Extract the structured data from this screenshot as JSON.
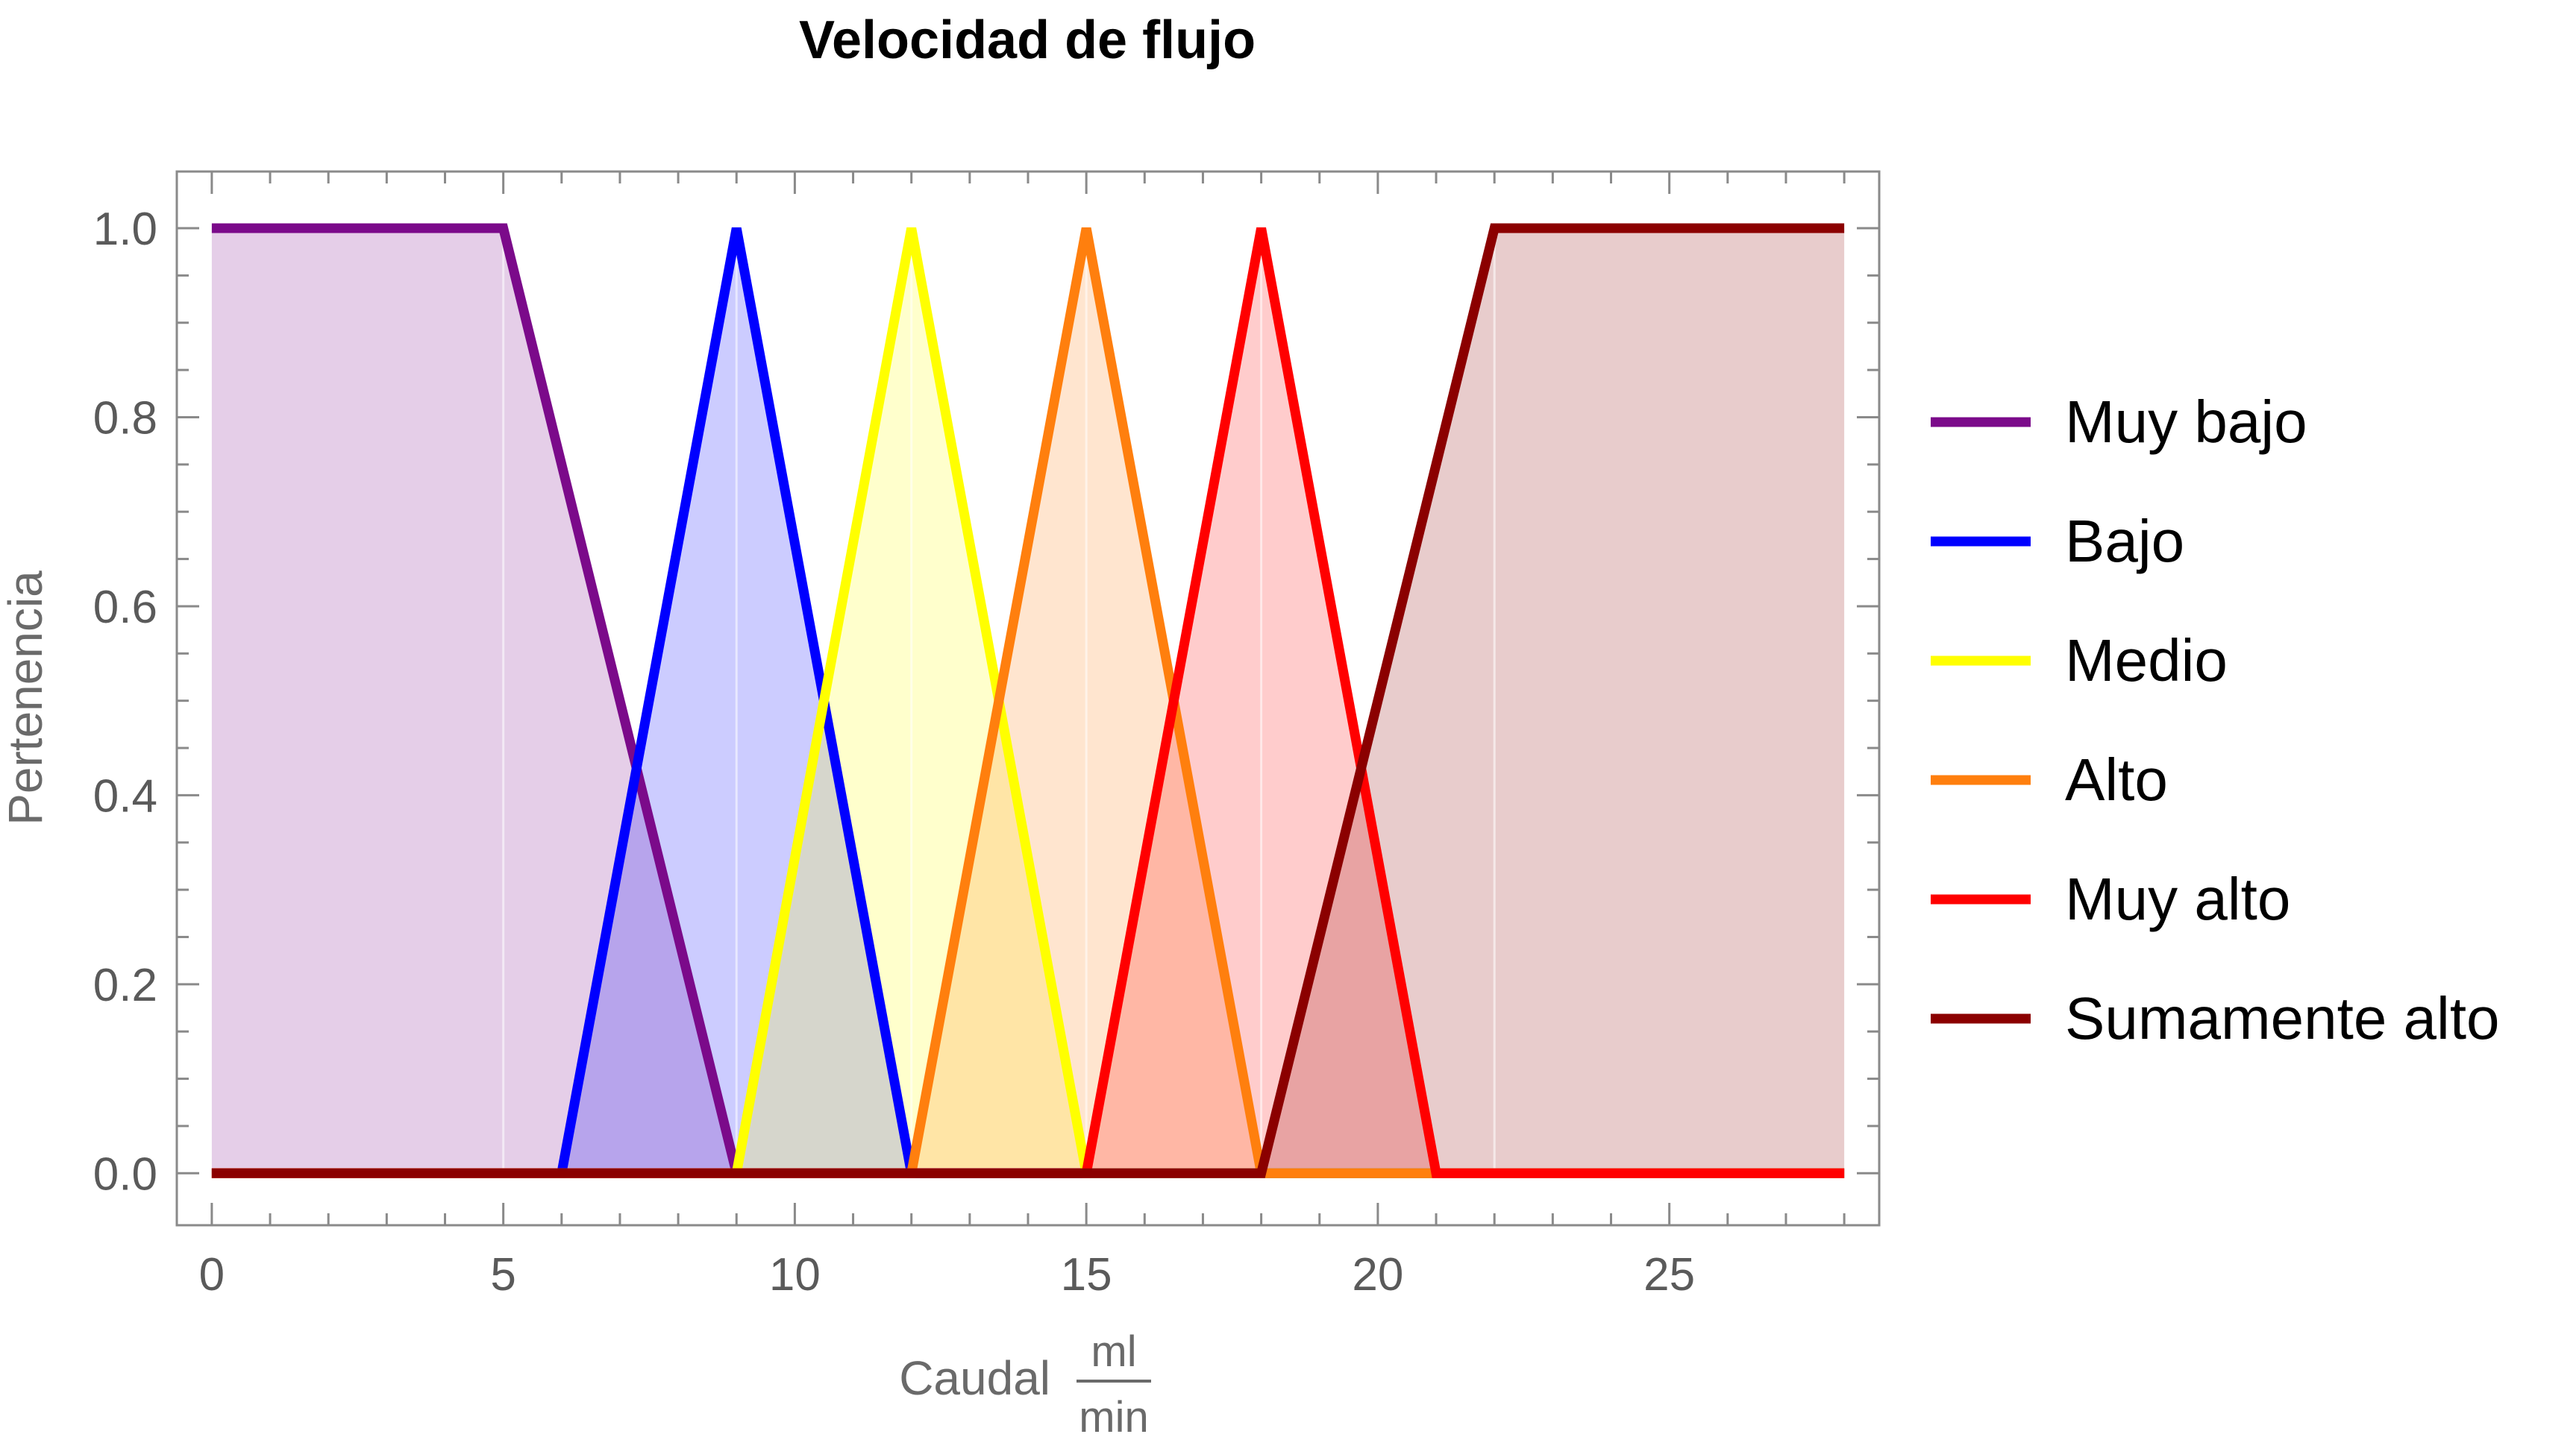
{
  "chart_data": {
    "type": "line",
    "title": "Velocidad de flujo",
    "ylabel": "Pertenencia",
    "xlabel": {
      "prefix": "Caudal",
      "unit_numerator": "ml",
      "unit_denominator": "min"
    },
    "xlim": [
      -0.6,
      28.6
    ],
    "ylim": [
      -0.055,
      1.06
    ],
    "x_ticks": [
      0,
      5,
      10,
      15,
      20,
      25
    ],
    "y_ticks": [
      0.0,
      0.2,
      0.4,
      0.6,
      0.8,
      1.0
    ],
    "y_tick_labels": [
      "0.0",
      "0.2",
      "0.4",
      "0.6",
      "0.8",
      "1.0"
    ],
    "grid": false,
    "filled_to_axis": true,
    "legend_position": "right",
    "series": [
      {
        "name": "Muy bajo",
        "color": "#7b0a8a",
        "points": [
          [
            0,
            1
          ],
          [
            5,
            1
          ],
          [
            9,
            0
          ],
          [
            28,
            0
          ]
        ]
      },
      {
        "name": "Bajo",
        "color": "#0000ff",
        "points": [
          [
            0,
            0
          ],
          [
            6,
            0
          ],
          [
            9,
            1
          ],
          [
            12,
            0
          ],
          [
            28,
            0
          ]
        ]
      },
      {
        "name": "Medio",
        "color": "#ffff00",
        "points": [
          [
            0,
            0
          ],
          [
            9,
            0
          ],
          [
            12,
            1
          ],
          [
            15,
            0
          ],
          [
            28,
            0
          ]
        ]
      },
      {
        "name": "Alto",
        "color": "#ff7f0e",
        "points": [
          [
            0,
            0
          ],
          [
            12,
            0
          ],
          [
            15,
            1
          ],
          [
            18,
            0
          ],
          [
            28,
            0
          ]
        ]
      },
      {
        "name": "Muy alto",
        "color": "#ff0000",
        "points": [
          [
            0,
            0
          ],
          [
            15,
            0
          ],
          [
            18,
            1
          ],
          [
            21,
            0
          ],
          [
            28,
            0
          ]
        ]
      },
      {
        "name": "Sumamente alto",
        "color": "#8b0000",
        "points": [
          [
            0,
            0
          ],
          [
            18,
            0
          ],
          [
            22,
            1
          ],
          [
            28,
            1
          ]
        ]
      }
    ]
  }
}
